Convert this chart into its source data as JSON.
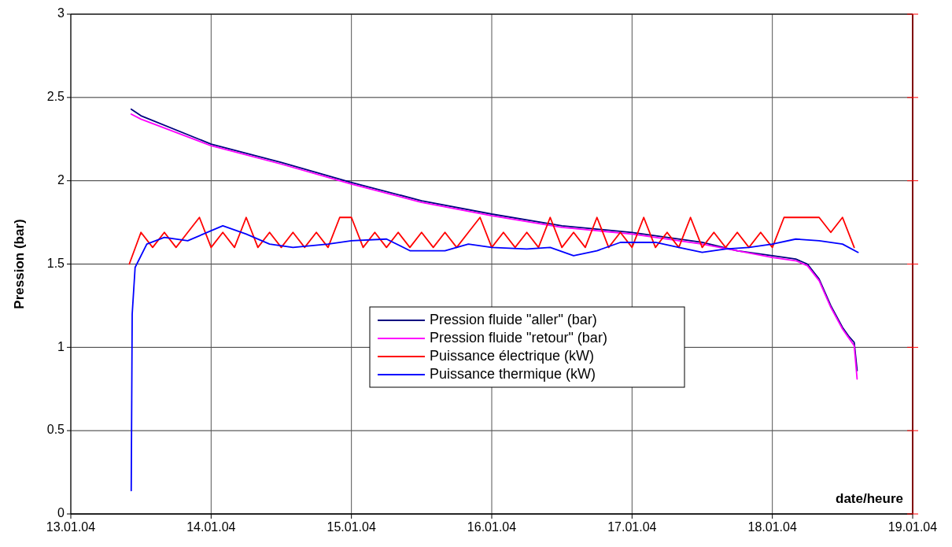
{
  "chart_data": {
    "type": "line",
    "ylabel": "Pression (bar)",
    "xlabel": "date/heure",
    "xlim": [
      "--01-13",
      "--01-19"
    ],
    "xticks": [
      {
        "value": "--01-13",
        "label": "13.01.04"
      },
      {
        "value": "--01-14",
        "label": "14.01.04"
      },
      {
        "value": "--01-15",
        "label": "15.01.04"
      },
      {
        "value": "--01-16",
        "label": "16.01.04"
      },
      {
        "value": "--01-17",
        "label": "17.01.04"
      },
      {
        "value": "--01-18",
        "label": "18.01.04"
      },
      {
        "value": "--01-19",
        "label": "19.01.04"
      }
    ],
    "ylim": [
      0,
      3
    ],
    "yticks": [
      0,
      0.5,
      1,
      1.5,
      2,
      2.5,
      3
    ],
    "grid": true,
    "legend": "center",
    "line_style": "solid",
    "series": [
      {
        "name": "Pression fluide \"aller\" (bar)",
        "color": "#000080",
        "x": [
          "--01-13T10:20",
          "--01-13T12:00",
          "--01-14T00:00",
          "--01-14T12:00",
          "--01-15T00:00",
          "--01-15T12:00",
          "--01-16T00:00",
          "--01-16T12:00",
          "--01-17T00:00",
          "--01-17T12:00",
          "--01-17T18:00",
          "--01-18T00:00",
          "--01-18T04:00",
          "--01-18T06:00",
          "--01-18T08:00",
          "--01-18T10:00",
          "--01-18T12:00",
          "--01-18T13:00",
          "--01-18T14:00",
          "--01-18T14:30"
        ],
        "values": [
          2.43,
          2.39,
          2.22,
          2.11,
          1.99,
          1.88,
          1.8,
          1.73,
          1.69,
          1.63,
          1.58,
          1.55,
          1.53,
          1.5,
          1.41,
          1.25,
          1.12,
          1.07,
          1.03,
          0.86
        ]
      },
      {
        "name": "Pression fluide \"retour\" (bar)",
        "color": "#ff00ff",
        "x": [
          "--01-13T10:20",
          "--01-13T12:00",
          "--01-14T00:00",
          "--01-14T12:00",
          "--01-15T00:00",
          "--01-15T12:00",
          "--01-16T00:00",
          "--01-16T12:00",
          "--01-17T00:00",
          "--01-17T12:00",
          "--01-17T18:00",
          "--01-18T00:00",
          "--01-18T04:00",
          "--01-18T06:00",
          "--01-18T08:00",
          "--01-18T10:00",
          "--01-18T12:00",
          "--01-18T13:00",
          "--01-18T14:00",
          "--01-18T14:30"
        ],
        "values": [
          2.4,
          2.37,
          2.21,
          2.1,
          1.98,
          1.87,
          1.79,
          1.72,
          1.68,
          1.62,
          1.58,
          1.54,
          1.52,
          1.49,
          1.4,
          1.24,
          1.11,
          1.06,
          1.01,
          0.81
        ]
      },
      {
        "name": "Puissance électrique (kW)",
        "color": "#ff0000",
        "x": [
          "--01-13T10:00",
          "--01-13T12:00",
          "--01-13T14:00",
          "--01-13T16:00",
          "--01-13T18:00",
          "--01-13T20:00",
          "--01-13T22:00",
          "--01-14T00:00",
          "--01-14T02:00",
          "--01-14T04:00",
          "--01-14T06:00",
          "--01-14T08:00",
          "--01-14T10:00",
          "--01-14T12:00",
          "--01-14T14:00",
          "--01-14T16:00",
          "--01-14T18:00",
          "--01-14T20:00",
          "--01-14T22:00",
          "--01-15T00:00",
          "--01-15T02:00",
          "--01-15T04:00",
          "--01-15T06:00",
          "--01-15T08:00",
          "--01-15T10:00",
          "--01-15T12:00",
          "--01-15T14:00",
          "--01-15T16:00",
          "--01-15T18:00",
          "--01-15T20:00",
          "--01-15T22:00",
          "--01-16T00:00",
          "--01-16T02:00",
          "--01-16T04:00",
          "--01-16T06:00",
          "--01-16T08:00",
          "--01-16T10:00",
          "--01-16T12:00",
          "--01-16T14:00",
          "--01-16T16:00",
          "--01-16T18:00",
          "--01-16T20:00",
          "--01-16T22:00",
          "--01-17T00:00",
          "--01-17T02:00",
          "--01-17T04:00",
          "--01-17T06:00",
          "--01-17T08:00",
          "--01-17T10:00",
          "--01-17T12:00",
          "--01-17T14:00",
          "--01-17T16:00",
          "--01-17T18:00",
          "--01-17T20:00",
          "--01-17T22:00",
          "--01-18T00:00",
          "--01-18T02:00",
          "--01-18T04:00",
          "--01-18T06:00",
          "--01-18T08:00",
          "--01-18T10:00",
          "--01-18T12:00",
          "--01-18T14:00"
        ],
        "values": [
          1.5,
          1.69,
          1.6,
          1.69,
          1.6,
          1.69,
          1.78,
          1.6,
          1.69,
          1.6,
          1.78,
          1.6,
          1.69,
          1.6,
          1.69,
          1.6,
          1.69,
          1.6,
          1.78,
          1.78,
          1.6,
          1.69,
          1.6,
          1.69,
          1.6,
          1.69,
          1.6,
          1.69,
          1.6,
          1.69,
          1.78,
          1.6,
          1.69,
          1.6,
          1.69,
          1.6,
          1.78,
          1.6,
          1.69,
          1.6,
          1.78,
          1.6,
          1.69,
          1.6,
          1.78,
          1.6,
          1.69,
          1.6,
          1.78,
          1.6,
          1.69,
          1.6,
          1.69,
          1.6,
          1.69,
          1.6,
          1.78,
          1.78,
          1.78,
          1.78,
          1.69,
          1.78,
          1.6
        ]
      },
      {
        "name": "Puissance thermique (kW)",
        "color": "#0000ff",
        "x": [
          "--01-13T10:20",
          "--01-13T10:30",
          "--01-13T11:00",
          "--01-13T13:00",
          "--01-13T16:00",
          "--01-13T20:00",
          "--01-14T00:00",
          "--01-14T02:00",
          "--01-14T06:00",
          "--01-14T10:00",
          "--01-14T14:00",
          "--01-14T20:00",
          "--01-15T00:00",
          "--01-15T06:00",
          "--01-15T10:00",
          "--01-15T16:00",
          "--01-15T20:00",
          "--01-16T00:00",
          "--01-16T06:00",
          "--01-16T10:00",
          "--01-16T14:00",
          "--01-16T18:00",
          "--01-16T22:00",
          "--01-17T04:00",
          "--01-17T08:00",
          "--01-17T12:00",
          "--01-17T16:00",
          "--01-17T20:00",
          "--01-18T00:00",
          "--01-18T04:00",
          "--01-18T08:00",
          "--01-18T12:00",
          "--01-18T14:40"
        ],
        "values": [
          0.14,
          1.2,
          1.48,
          1.62,
          1.66,
          1.64,
          1.7,
          1.73,
          1.68,
          1.62,
          1.6,
          1.62,
          1.64,
          1.65,
          1.58,
          1.58,
          1.62,
          1.6,
          1.59,
          1.6,
          1.55,
          1.58,
          1.63,
          1.63,
          1.6,
          1.57,
          1.59,
          1.6,
          1.62,
          1.65,
          1.64,
          1.62,
          1.57
        ]
      }
    ]
  }
}
